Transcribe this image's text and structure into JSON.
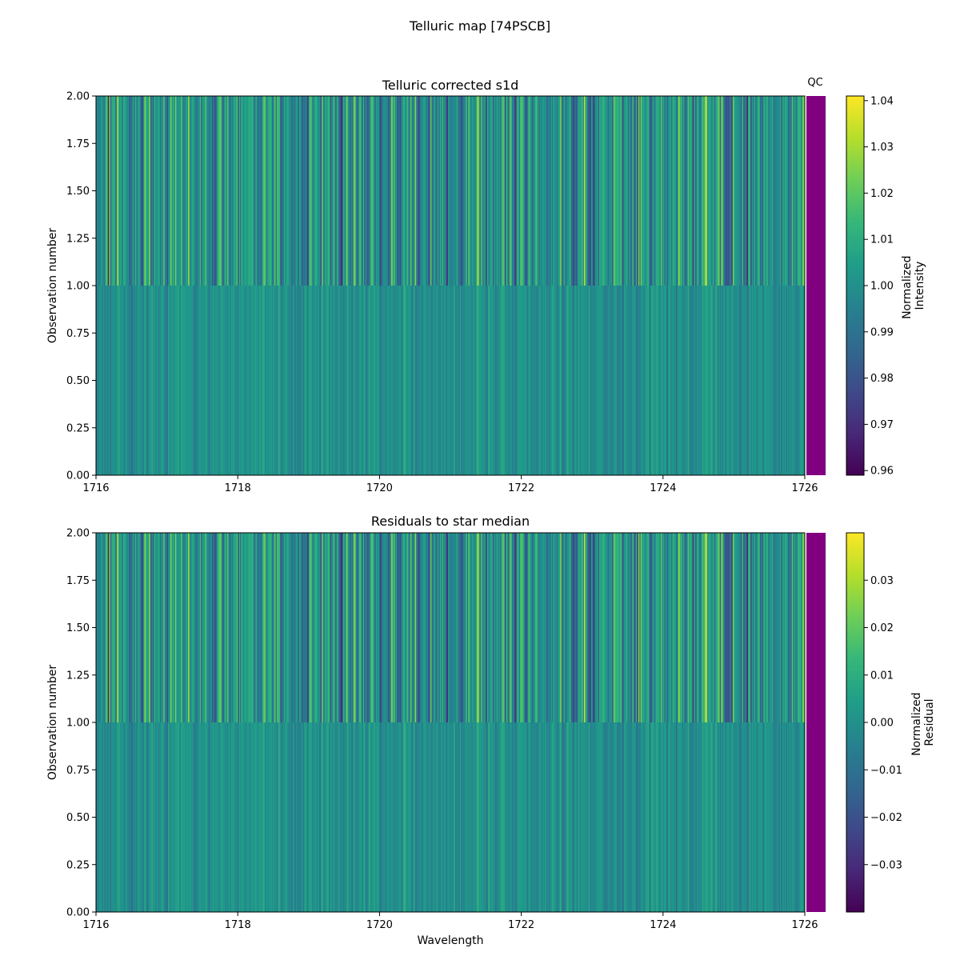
{
  "figure": {
    "suptitle": "Telluric map [74PSCB]"
  },
  "colormap": {
    "name": "viridis",
    "stops": [
      "#440154",
      "#482878",
      "#3e4a89",
      "#31688e",
      "#26828e",
      "#1f9e89",
      "#35b779",
      "#6ece58",
      "#b5de2b",
      "#fde725"
    ]
  },
  "qc": {
    "label": "QC",
    "color": "#800080"
  },
  "chart_data": [
    {
      "type": "heatmap",
      "title": "Telluric corrected s1d",
      "xlabel": "",
      "ylabel": "Observation number",
      "xlim": [
        1716,
        1726
      ],
      "ylim": [
        0,
        2
      ],
      "x_ticks": [
        "1716",
        "1718",
        "1720",
        "1722",
        "1724",
        "1726"
      ],
      "y_ticks": [
        "0.00",
        "0.25",
        "0.50",
        "0.75",
        "1.00",
        "1.25",
        "1.50",
        "1.75",
        "2.00"
      ],
      "rows": [
        {
          "y_range": [
            0,
            1
          ],
          "center": 1.0,
          "spread": 0.0045
        },
        {
          "y_range": [
            1,
            2
          ],
          "center": 1.0,
          "spread": 0.0125
        }
      ],
      "colorbar": {
        "label_lines": [
          "Normalized",
          "Intensity"
        ],
        "range": [
          0.959,
          1.041
        ],
        "ticks": [
          "0.96",
          "0.97",
          "0.98",
          "0.99",
          "1.00",
          "1.01",
          "1.02",
          "1.03",
          "1.04"
        ]
      },
      "qc_band": true
    },
    {
      "type": "heatmap",
      "title": "Residuals to star median",
      "xlabel": "Wavelength",
      "ylabel": "Observation number",
      "xlim": [
        1716,
        1726
      ],
      "ylim": [
        0,
        2
      ],
      "x_ticks": [
        "1716",
        "1718",
        "1720",
        "1722",
        "1724",
        "1726"
      ],
      "y_ticks": [
        "0.00",
        "0.25",
        "0.50",
        "0.75",
        "1.00",
        "1.25",
        "1.50",
        "1.75",
        "2.00"
      ],
      "rows": [
        {
          "y_range": [
            0,
            1
          ],
          "center": 0.0,
          "spread": 0.0045
        },
        {
          "y_range": [
            1,
            2
          ],
          "center": 0.0,
          "spread": 0.0125
        }
      ],
      "colorbar": {
        "label_lines": [
          "Normalized",
          "Residual"
        ],
        "range": [
          -0.04,
          0.04
        ],
        "ticks": [
          "−0.03",
          "−0.02",
          "−0.01",
          "0.00",
          "0.01",
          "0.02",
          "0.03"
        ]
      },
      "qc_band": true
    }
  ]
}
